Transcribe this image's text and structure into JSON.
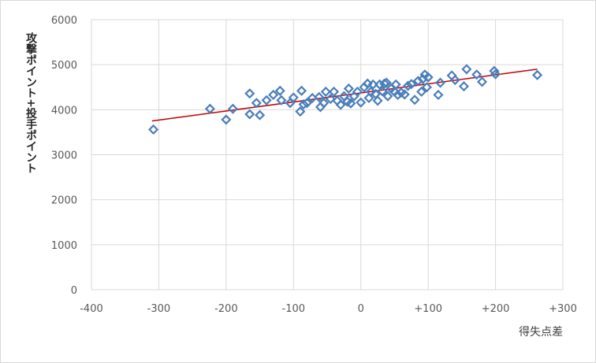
{
  "chart_data": {
    "type": "scatter",
    "title": "",
    "xlabel": "得失点差",
    "ylabel": "攻撃ポイント+投手ポイント",
    "xlim": [
      -400,
      300
    ],
    "ylim": [
      0,
      6000
    ],
    "x_ticks": [
      -400,
      -300,
      -200,
      -100,
      0,
      100,
      200,
      300
    ],
    "x_tick_labels": [
      "-400",
      "-300",
      "-200",
      "-100",
      "0",
      "+100",
      "+200",
      "+300"
    ],
    "y_ticks": [
      0,
      1000,
      2000,
      3000,
      4000,
      5000,
      6000
    ],
    "y_tick_labels": [
      "0",
      "1000",
      "2000",
      "3000",
      "4000",
      "5000",
      "6000"
    ],
    "grid": true,
    "legend": "none",
    "colors": {
      "marker": "#4a7ebb",
      "trendline": "#c00000",
      "grid": "#d9d9d9"
    },
    "trendline": {
      "x": [
        -310,
        262
      ],
      "y": [
        3750,
        4900
      ]
    },
    "points": [
      {
        "x": -308,
        "y": 3560
      },
      {
        "x": -224,
        "y": 4020
      },
      {
        "x": -200,
        "y": 3780
      },
      {
        "x": -190,
        "y": 4020
      },
      {
        "x": -165,
        "y": 3900
      },
      {
        "x": -165,
        "y": 4360
      },
      {
        "x": -155,
        "y": 4150
      },
      {
        "x": -150,
        "y": 3880
      },
      {
        "x": -140,
        "y": 4210
      },
      {
        "x": -130,
        "y": 4330
      },
      {
        "x": -120,
        "y": 4420
      },
      {
        "x": -118,
        "y": 4210
      },
      {
        "x": -105,
        "y": 4150
      },
      {
        "x": -100,
        "y": 4270
      },
      {
        "x": -90,
        "y": 3960
      },
      {
        "x": -88,
        "y": 4420
      },
      {
        "x": -85,
        "y": 4120
      },
      {
        "x": -80,
        "y": 4150
      },
      {
        "x": -72,
        "y": 4260
      },
      {
        "x": -62,
        "y": 4280
      },
      {
        "x": -60,
        "y": 4060
      },
      {
        "x": -55,
        "y": 4150
      },
      {
        "x": -52,
        "y": 4400
      },
      {
        "x": -45,
        "y": 4240
      },
      {
        "x": -40,
        "y": 4400
      },
      {
        "x": -35,
        "y": 4200
      },
      {
        "x": -30,
        "y": 4110
      },
      {
        "x": -25,
        "y": 4300
      },
      {
        "x": -20,
        "y": 4180
      },
      {
        "x": -18,
        "y": 4470
      },
      {
        "x": -15,
        "y": 4140
      },
      {
        "x": -10,
        "y": 4300
      },
      {
        "x": -5,
        "y": 4400
      },
      {
        "x": 0,
        "y": 4160
      },
      {
        "x": 5,
        "y": 4500
      },
      {
        "x": 10,
        "y": 4580
      },
      {
        "x": 12,
        "y": 4260
      },
      {
        "x": 15,
        "y": 4400
      },
      {
        "x": 18,
        "y": 4560
      },
      {
        "x": 22,
        "y": 4350
      },
      {
        "x": 25,
        "y": 4200
      },
      {
        "x": 28,
        "y": 4560
      },
      {
        "x": 32,
        "y": 4410
      },
      {
        "x": 35,
        "y": 4580
      },
      {
        "x": 38,
        "y": 4600
      },
      {
        "x": 40,
        "y": 4300
      },
      {
        "x": 45,
        "y": 4470
      },
      {
        "x": 50,
        "y": 4400
      },
      {
        "x": 52,
        "y": 4560
      },
      {
        "x": 55,
        "y": 4330
      },
      {
        "x": 60,
        "y": 4380
      },
      {
        "x": 65,
        "y": 4340
      },
      {
        "x": 70,
        "y": 4530
      },
      {
        "x": 75,
        "y": 4570
      },
      {
        "x": 80,
        "y": 4220
      },
      {
        "x": 85,
        "y": 4640
      },
      {
        "x": 90,
        "y": 4400
      },
      {
        "x": 92,
        "y": 4680
      },
      {
        "x": 95,
        "y": 4780
      },
      {
        "x": 98,
        "y": 4500
      },
      {
        "x": 100,
        "y": 4720
      },
      {
        "x": 115,
        "y": 4330
      },
      {
        "x": 118,
        "y": 4600
      },
      {
        "x": 135,
        "y": 4760
      },
      {
        "x": 140,
        "y": 4660
      },
      {
        "x": 153,
        "y": 4520
      },
      {
        "x": 157,
        "y": 4900
      },
      {
        "x": 172,
        "y": 4780
      },
      {
        "x": 180,
        "y": 4620
      },
      {
        "x": 198,
        "y": 4860
      },
      {
        "x": 200,
        "y": 4790
      },
      {
        "x": 262,
        "y": 4770
      }
    ]
  }
}
